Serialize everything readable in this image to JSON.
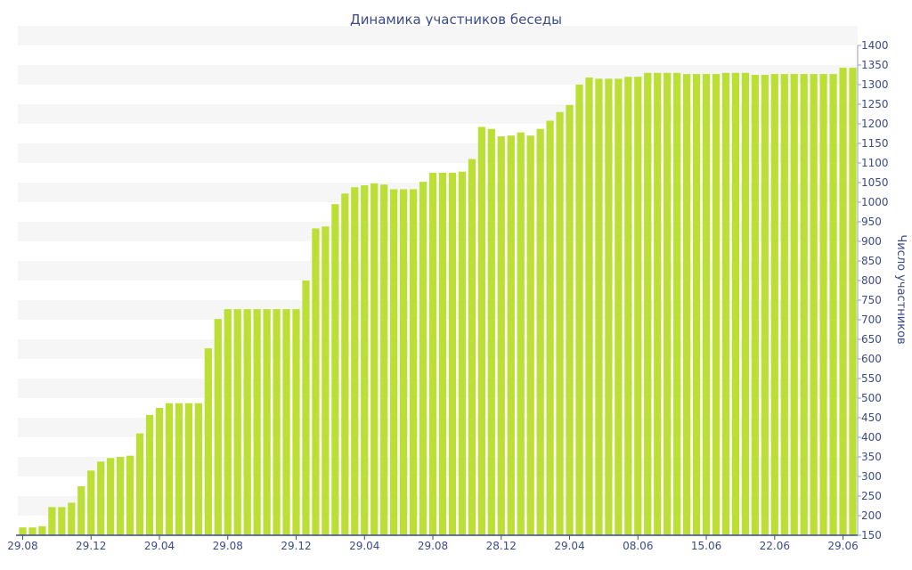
{
  "chart_data": {
    "type": "bar",
    "title": "Динамика участников беседы",
    "xlabel": "",
    "ylabel": "Число участников",
    "ylim": [
      150,
      1400
    ],
    "y_tick_step": 50,
    "grid": "alternating horizontal bands",
    "bar_color": "#bbdf34",
    "band_color": "#f6f6f6",
    "axis_text_color": "#3c4a8a",
    "x_tick_labels": [
      {
        "label": "29.08",
        "index": 0
      },
      {
        "label": "29.12",
        "index": 7
      },
      {
        "label": "29.04",
        "index": 14
      },
      {
        "label": "29.08",
        "index": 21
      },
      {
        "label": "29.12",
        "index": 28
      },
      {
        "label": "29.04",
        "index": 35
      },
      {
        "label": "29.08",
        "index": 42
      },
      {
        "label": "28.12",
        "index": 49
      },
      {
        "label": "29.04",
        "index": 56
      },
      {
        "label": "08.06",
        "index": 63
      },
      {
        "label": "15.06",
        "index": 70
      },
      {
        "label": "22.06",
        "index": 77
      },
      {
        "label": "29.06",
        "index": 84
      }
    ],
    "values": [
      170,
      170,
      173,
      222,
      222,
      233,
      275,
      315,
      338,
      347,
      350,
      353,
      410,
      457,
      475,
      487,
      487,
      487,
      487,
      627,
      702,
      727,
      727,
      727,
      727,
      727,
      727,
      727,
      727,
      800,
      933,
      938,
      995,
      1022,
      1038,
      1043,
      1048,
      1045,
      1033,
      1033,
      1033,
      1052,
      1075,
      1075,
      1075,
      1078,
      1110,
      1192,
      1187,
      1168,
      1170,
      1178,
      1170,
      1187,
      1208,
      1230,
      1248,
      1300,
      1318,
      1315,
      1315,
      1315,
      1320,
      1320,
      1330,
      1330,
      1330,
      1330,
      1327,
      1327,
      1327,
      1327,
      1330,
      1330,
      1330,
      1325,
      1325,
      1327,
      1327,
      1327,
      1327,
      1327,
      1327,
      1327,
      1343,
      1343
    ]
  }
}
